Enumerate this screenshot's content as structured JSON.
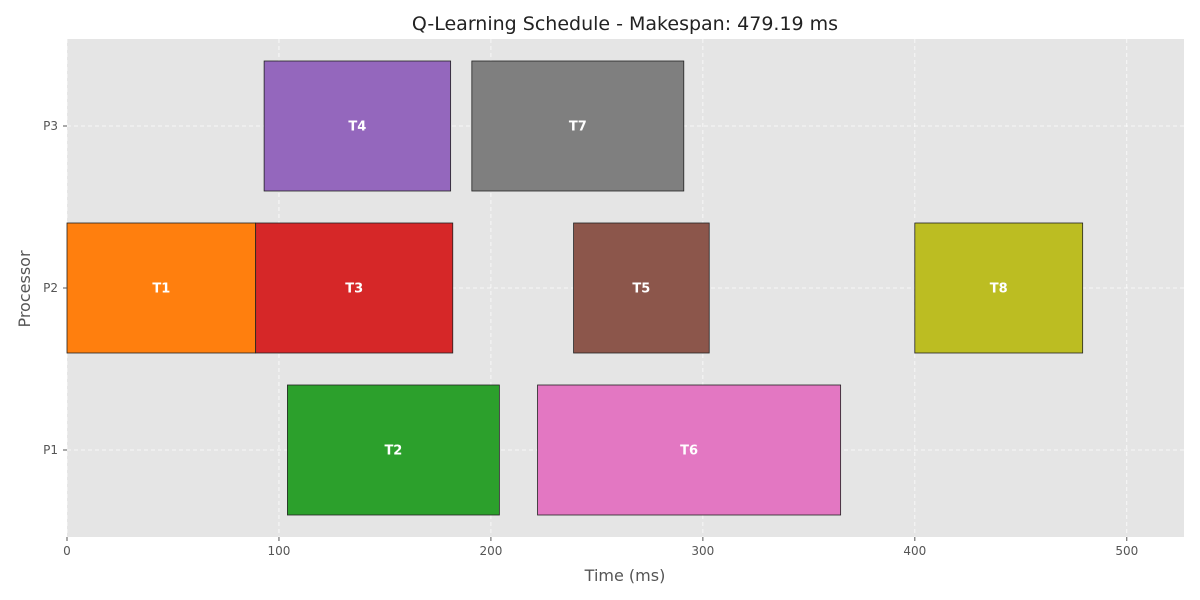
{
  "chart_data": {
    "type": "gantt",
    "title": "Q-Learning Schedule - Makespan: 479.19 ms",
    "xlabel": "Time (ms)",
    "ylabel": "Processor",
    "xlim": [
      0,
      527
    ],
    "xticks": [
      0,
      100,
      200,
      300,
      400,
      500
    ],
    "processors": [
      "P1",
      "P2",
      "P3"
    ],
    "grid": true,
    "tasks": [
      {
        "label": "T1",
        "processor": "P2",
        "start": 0,
        "end": 89,
        "color": "#ff7f0e"
      },
      {
        "label": "T3",
        "processor": "P2",
        "start": 89,
        "end": 182,
        "color": "#d62728"
      },
      {
        "label": "T5",
        "processor": "P2",
        "start": 239,
        "end": 303,
        "color": "#8c564b"
      },
      {
        "label": "T8",
        "processor": "P2",
        "start": 400,
        "end": 479.19,
        "color": "#bcbd22"
      },
      {
        "label": "T4",
        "processor": "P3",
        "start": 93,
        "end": 181,
        "color": "#9467bd"
      },
      {
        "label": "T7",
        "processor": "P3",
        "start": 191,
        "end": 291,
        "color": "#7f7f7f"
      },
      {
        "label": "T2",
        "processor": "P1",
        "start": 104,
        "end": 204,
        "color": "#2ca02c"
      },
      {
        "label": "T6",
        "processor": "P1",
        "start": 222,
        "end": 365,
        "color": "#e377c2"
      }
    ]
  },
  "colors": {
    "plot_background": "#e5e5e5",
    "bar_edge": "#222222"
  }
}
